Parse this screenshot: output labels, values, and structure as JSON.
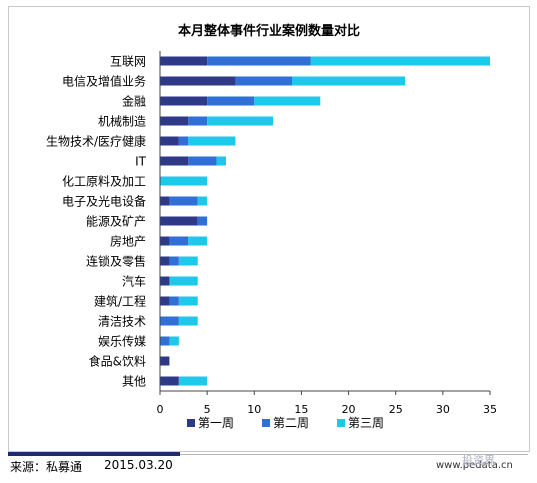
{
  "chart_data": {
    "type": "bar",
    "orientation": "horizontal",
    "stacked": true,
    "title": "本月整体事件行业案例数量对比",
    "categories": [
      "互联网",
      "电信及增值业务",
      "金融",
      "机械制造",
      "生物技术/医疗健康",
      "IT",
      "化工原料及加工",
      "电子及光电设备",
      "能源及矿产",
      "房地产",
      "连锁及零售",
      "汽车",
      "建筑/工程",
      "清洁技术",
      "娱乐传媒",
      "食品&饮料",
      "其他"
    ],
    "series": [
      {
        "name": "第一周",
        "color": "#2e3a87",
        "values": [
          5,
          8,
          5,
          3,
          2,
          3,
          0,
          1,
          4,
          1,
          1,
          1,
          1,
          0,
          0,
          1,
          2
        ]
      },
      {
        "name": "第二周",
        "color": "#2f6fd6",
        "values": [
          11,
          6,
          5,
          2,
          1,
          3,
          0,
          3,
          1,
          2,
          1,
          0,
          1,
          2,
          1,
          0,
          0
        ]
      },
      {
        "name": "第三周",
        "color": "#1ec8e8",
        "values": [
          19,
          12,
          7,
          7,
          5,
          1,
          5,
          1,
          0,
          2,
          2,
          3,
          2,
          2,
          1,
          0,
          3
        ]
      }
    ],
    "xlim": [
      0,
      35
    ],
    "xticks": [
      0,
      5,
      10,
      15,
      20,
      25,
      30,
      35
    ],
    "legend": "bottom",
    "grid": false
  },
  "footer": {
    "source": "来源：私募通",
    "date": "2015.03.20",
    "website": "www.pedata.cn",
    "watermark": "投资界"
  }
}
